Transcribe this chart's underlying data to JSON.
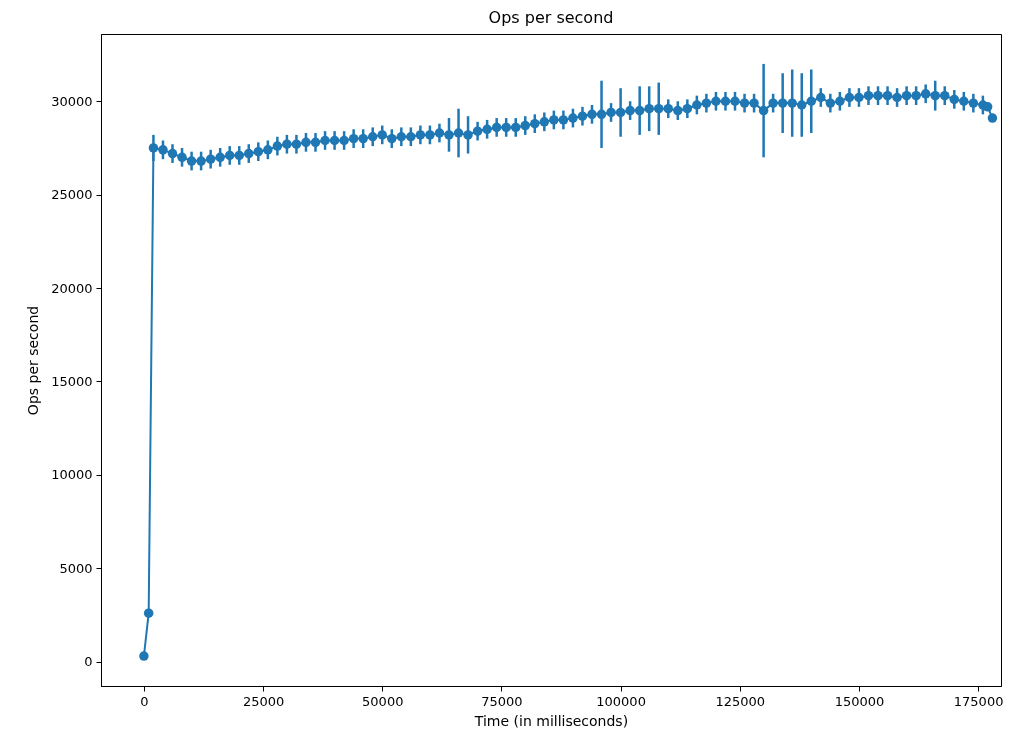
{
  "chart_data": {
    "type": "line",
    "title": "Ops per second",
    "xlabel": "Time (in milliseconds)",
    "ylabel": "Ops per second",
    "x": [
      0,
      1000,
      2000,
      4000,
      6000,
      8000,
      10000,
      12000,
      14000,
      16000,
      18000,
      20000,
      22000,
      24000,
      26000,
      28000,
      30000,
      32000,
      34000,
      36000,
      38000,
      40000,
      42000,
      44000,
      46000,
      48000,
      50000,
      52000,
      54000,
      56000,
      58000,
      60000,
      62000,
      64000,
      66000,
      68000,
      70000,
      72000,
      74000,
      76000,
      78000,
      80000,
      82000,
      84000,
      86000,
      88000,
      90000,
      92000,
      94000,
      96000,
      98000,
      100000,
      102000,
      104000,
      106000,
      108000,
      110000,
      112000,
      114000,
      116000,
      118000,
      120000,
      122000,
      124000,
      126000,
      128000,
      130000,
      132000,
      134000,
      136000,
      138000,
      140000,
      142000,
      144000,
      146000,
      148000,
      150000,
      152000,
      154000,
      156000,
      158000,
      160000,
      162000,
      164000,
      166000,
      168000,
      170000,
      172000,
      174000,
      176000,
      177000,
      178000
    ],
    "series": [
      {
        "color": "#1f77b4",
        "values": [
          300,
          2600,
          27500,
          27400,
          27200,
          27000,
          26800,
          26800,
          26900,
          27000,
          27100,
          27100,
          27200,
          27300,
          27400,
          27600,
          27700,
          27700,
          27800,
          27800,
          27900,
          27900,
          27900,
          28000,
          28000,
          28100,
          28200,
          28000,
          28100,
          28100,
          28200,
          28200,
          28300,
          28200,
          28300,
          28200,
          28400,
          28500,
          28600,
          28600,
          28600,
          28700,
          28800,
          28900,
          29000,
          29000,
          29100,
          29200,
          29300,
          29300,
          29400,
          29400,
          29500,
          29500,
          29600,
          29600,
          29600,
          29500,
          29600,
          29800,
          29900,
          30000,
          30000,
          30000,
          29900,
          29900,
          29500,
          29900,
          29900,
          29900,
          29800,
          30000,
          30200,
          29900,
          30000,
          30200,
          30200,
          30300,
          30300,
          30300,
          30200,
          30300,
          30300,
          30400,
          30300,
          30300,
          30100,
          30000,
          29900,
          29800,
          29700,
          29100
        ],
        "errors": [
          null,
          null,
          700,
          500,
          500,
          500,
          500,
          500,
          500,
          500,
          500,
          500,
          500,
          500,
          500,
          500,
          500,
          500,
          500,
          500,
          500,
          500,
          500,
          500,
          500,
          500,
          500,
          500,
          500,
          500,
          500,
          500,
          500,
          900,
          1300,
          1000,
          500,
          500,
          500,
          500,
          500,
          500,
          500,
          500,
          500,
          500,
          500,
          500,
          500,
          1800,
          500,
          1300,
          500,
          1300,
          1200,
          1400,
          500,
          500,
          500,
          500,
          500,
          500,
          500,
          500,
          500,
          500,
          2500,
          500,
          1600,
          1800,
          1700,
          1700,
          500,
          500,
          500,
          500,
          500,
          500,
          500,
          500,
          500,
          500,
          500,
          500,
          800,
          500,
          500,
          500,
          500,
          500,
          null,
          null
        ]
      }
    ],
    "xlim": [
      -9000,
      179800
    ],
    "ylim": [
      -1300,
      33600
    ],
    "xticks": [
      0,
      25000,
      50000,
      75000,
      100000,
      125000,
      150000,
      175000
    ],
    "yticks": [
      0,
      5000,
      10000,
      15000,
      20000,
      25000,
      30000
    ],
    "marker": "circle",
    "grid": false
  }
}
